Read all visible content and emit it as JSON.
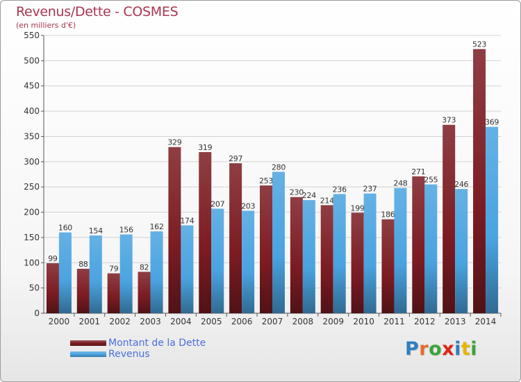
{
  "header": {
    "title": "Revenus/Dette - COSMES",
    "subtitle": "(en milliers d'€)"
  },
  "legend": {
    "items": [
      {
        "label": "Montant de la Dette",
        "color": "#7b1c22"
      },
      {
        "label": "Revenus",
        "color": "#4aa3e0"
      }
    ]
  },
  "logo": {
    "text": "Proxiti",
    "letter_colors": [
      "#2d7fc1",
      "#e8692a",
      "#3aa53a",
      "#e2231a",
      "#2d7fc1",
      "#e8b400",
      "#3aa53a"
    ]
  },
  "chart_data": {
    "type": "bar",
    "categories": [
      "2000",
      "2001",
      "2002",
      "2003",
      "2004",
      "2005",
      "2006",
      "2007",
      "2008",
      "2009",
      "2010",
      "2011",
      "2012",
      "2013",
      "2014"
    ],
    "series": [
      {
        "name": "Montant de la Dette",
        "color": "#7b1c22",
        "values": [
          99,
          88,
          79,
          82,
          329,
          319,
          297,
          253,
          230,
          214,
          199,
          186,
          271,
          373,
          523
        ]
      },
      {
        "name": "Revenus",
        "color": "#4aa3e0",
        "values": [
          160,
          154,
          156,
          162,
          174,
          207,
          203,
          280,
          224,
          236,
          237,
          248,
          255,
          246,
          369
        ]
      }
    ],
    "yticks": [
      0,
      50,
      100,
      150,
      200,
      250,
      300,
      350,
      400,
      450,
      500,
      550
    ],
    "ylim": [
      0,
      550
    ],
    "grid": true,
    "legend_position": "bottom-left"
  }
}
